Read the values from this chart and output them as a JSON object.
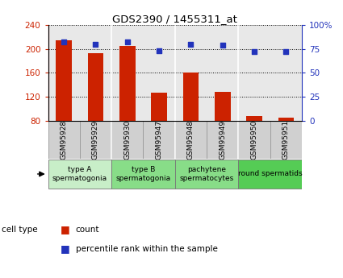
{
  "title": "GDS2390 / 1455311_at",
  "samples": [
    "GSM95928",
    "GSM95929",
    "GSM95930",
    "GSM95947",
    "GSM95948",
    "GSM95949",
    "GSM95950",
    "GSM95951"
  ],
  "counts": [
    215,
    193,
    205,
    127,
    160,
    128,
    88,
    85
  ],
  "percentiles": [
    82,
    80,
    82,
    73,
    80,
    79,
    72,
    72
  ],
  "ylim_left": [
    80,
    240
  ],
  "ylim_right": [
    0,
    100
  ],
  "yticks_left": [
    80,
    120,
    160,
    200,
    240
  ],
  "yticks_right": [
    0,
    25,
    50,
    75,
    100
  ],
  "ytick_labels_right": [
    "0",
    "25",
    "50",
    "75",
    "100%"
  ],
  "bar_color": "#cc2200",
  "dot_color": "#2233bb",
  "bg_color": "#e8e8e8",
  "sample_box_color": "#d0d0d0",
  "cell_types": [
    {
      "label": "type A\nspermatogonia",
      "start": 0,
      "end": 1,
      "color": "#c8eec8"
    },
    {
      "label": "type B\nspermatogonia",
      "start": 2,
      "end": 3,
      "color": "#88dd88"
    },
    {
      "label": "pachytene\nspermatocytes",
      "start": 4,
      "end": 5,
      "color": "#88dd88"
    },
    {
      "label": "round spermatids",
      "start": 6,
      "end": 7,
      "color": "#55cc55"
    }
  ],
  "group_borders": [
    1.5,
    3.5,
    5.5
  ],
  "legend_count_label": "count",
  "legend_pct_label": "percentile rank within the sample",
  "cell_type_label": "cell type"
}
